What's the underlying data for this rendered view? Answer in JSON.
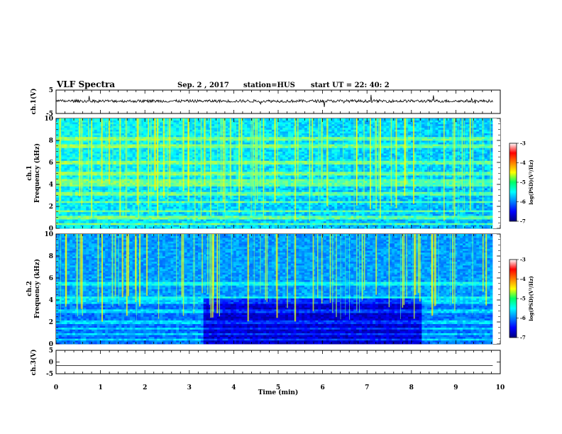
{
  "header": {
    "title": "VLF Spectra",
    "date": "Sep. 2 , 2017",
    "station": "station=HUS",
    "start": "start UT =  22: 40: 2"
  },
  "chart_data": [
    {
      "type": "line",
      "panel": "ch1-waveform",
      "ylabel": "ch.1(V)",
      "ylim": [
        -5,
        5
      ],
      "yticks": [
        5,
        -5
      ],
      "note": "noisy waveform centred near 0 V"
    },
    {
      "type": "heatmap",
      "panel": "ch1-spectrogram",
      "ylabel_line1": "ch.1",
      "ylabel_line2": "Frequency (kHz)",
      "ylim": [
        0,
        10
      ],
      "yticks": [
        0,
        2,
        4,
        6,
        8,
        10
      ],
      "xlim": [
        0,
        9.83
      ],
      "colorbar": {
        "label": "log(PSD)(V²/Hz)",
        "range": [
          -7,
          -3
        ],
        "ticks": [
          -3,
          -4,
          -5,
          -6,
          -7
        ]
      },
      "bands_khz": [
        0.4,
        1.0,
        1.6,
        2.4,
        3.2,
        4.0,
        4.3,
        5.0,
        6.0,
        7.5,
        8.2
      ]
    },
    {
      "type": "heatmap",
      "panel": "ch2-spectrogram",
      "ylabel_line1": "ch.2",
      "ylabel_line2": "Frequency (kHz)",
      "ylim": [
        0,
        10
      ],
      "yticks": [
        0,
        2,
        4,
        6,
        8,
        10
      ],
      "xlim": [
        0,
        9.83
      ],
      "colorbar": {
        "label": "log(PSD)(V²/Hz)",
        "range": [
          -7,
          -3
        ],
        "ticks": [
          -3,
          -4,
          -5,
          -6,
          -7
        ]
      },
      "bands_khz": [
        0.4,
        0.9,
        1.4,
        2.0,
        3.0,
        3.8,
        4.2,
        5.5
      ]
    },
    {
      "type": "line",
      "panel": "ch3-waveform",
      "ylabel": "ch.3(V)",
      "ylim": [
        -5,
        5
      ],
      "yticks": [
        5,
        0,
        -5
      ],
      "note": "flat line near -1.5 V"
    }
  ],
  "xaxis": {
    "label": "Time (min)",
    "range": [
      0,
      10
    ],
    "ticks": [
      "0",
      "1",
      "2",
      "3",
      "4",
      "5",
      "6",
      "7",
      "8",
      "9",
      "10"
    ]
  }
}
